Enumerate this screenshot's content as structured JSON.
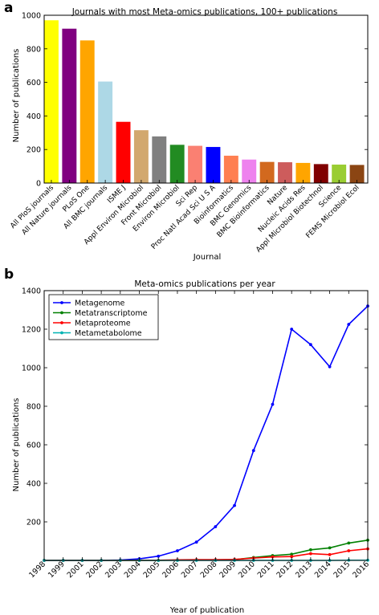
{
  "panels": {
    "a": "a",
    "b": "b"
  },
  "chart_data": [
    {
      "type": "bar",
      "title": "Journals with most Meta-omics publications, 100+ publications",
      "xlabel": "Journal",
      "ylabel": "Number of publications",
      "ylim": [
        0,
        1000
      ],
      "yticks": [
        "0",
        "200",
        "400",
        "600",
        "800",
        "1000"
      ],
      "grid": false,
      "categories": [
        "All PloS journals",
        "All Nature journals",
        "PLoS One",
        "All BMC journals",
        "ISME J",
        "Appl Environ Microbiol",
        "Front Microbiol",
        "Environ Microbiol",
        "Sci Rep",
        "Proc Natl Acad Sci U S A",
        "Bioinformatics",
        "BMC Genomics",
        "BMC Bioinformatics",
        "Nature",
        "Nucleic Acids Res",
        "Appl Microbiol Biotechnol",
        "Science",
        "FEMS Microbiol Ecol"
      ],
      "values": [
        970,
        920,
        850,
        605,
        365,
        315,
        278,
        228,
        222,
        215,
        163,
        140,
        126,
        124,
        120,
        113,
        110,
        108
      ],
      "colors": [
        "#ffff00",
        "#800080",
        "#ffa500",
        "#add8e6",
        "#ff0000",
        "#d2a86e",
        "#808080",
        "#228b22",
        "#fa8072",
        "#0000ff",
        "#ff7f50",
        "#ee82ee",
        "#d2691e",
        "#cd5c5c",
        "#ffa500",
        "#800000",
        "#9acd32",
        "#8b4513"
      ]
    },
    {
      "type": "line",
      "title": "Meta-omics publications per year",
      "xlabel": "Year of publication",
      "ylabel": "Number of publications",
      "ylim": [
        0,
        1400
      ],
      "yticks": [
        "200",
        "400",
        "600",
        "800",
        "1000",
        "1200",
        "1400"
      ],
      "xtick_labels": [
        "1998",
        "1999",
        "2001",
        "2002",
        "2003",
        "2004",
        "2005",
        "2006",
        "2007",
        "2008",
        "2009",
        "2010",
        "2011",
        "2012",
        "2013",
        "2014",
        "2015",
        "2016"
      ],
      "legend": "top-left",
      "grid": false,
      "series": [
        {
          "name": "Metagenome",
          "color": "#0000ff",
          "values": [
            0,
            0,
            0,
            0,
            2,
            8,
            22,
            50,
            95,
            175,
            285,
            570,
            810,
            1200,
            1120,
            1005,
            1225,
            1320
          ]
        },
        {
          "name": "Metatranscriptome",
          "color": "#008000",
          "values": [
            0,
            0,
            0,
            0,
            0,
            0,
            0,
            1,
            2,
            2,
            4,
            15,
            25,
            32,
            55,
            65,
            90,
            105
          ]
        },
        {
          "name": "Metaproteome",
          "color": "#ff0000",
          "values": [
            0,
            0,
            0,
            0,
            0,
            0,
            1,
            3,
            4,
            4,
            5,
            12,
            18,
            20,
            35,
            30,
            50,
            60
          ]
        },
        {
          "name": "Metametabolome",
          "color": "#00b3b3",
          "values": [
            0,
            0,
            0,
            0,
            0,
            0,
            0,
            0,
            0,
            0,
            0,
            0,
            0,
            0,
            0,
            0,
            1,
            1
          ]
        }
      ]
    }
  ]
}
